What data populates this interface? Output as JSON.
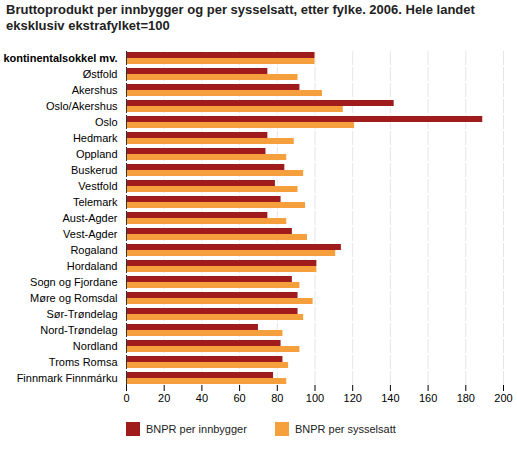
{
  "chart_data": {
    "type": "bar",
    "orientation": "horizontal",
    "title": "Bruttoprodukt per innbygger og per sysselsatt, etter fylke. 2006. Hele landet eksklusiv ekstrafylket=100",
    "categories": [
      "Hele landet, eks. kontinentalsokkel mv.",
      "Østfold",
      "Akershus",
      "Oslo/Akershus",
      "Oslo",
      "Hedmark",
      "Oppland",
      "Buskerud",
      "Vestfold",
      "Telemark",
      "Aust-Agder",
      "Vest-Agder",
      "Rogaland",
      "Hordaland",
      "Sogn og Fjordane",
      "Møre og Romsdal",
      "Sør-Trøndelag",
      "Nord-Trøndelag",
      "Nordland",
      "Troms Romsa",
      "Finnmark Finnmárku"
    ],
    "series": [
      {
        "name": "BNPR per innbygger",
        "color": "#a01c1c",
        "values": [
          100,
          75,
          92,
          142,
          189,
          75,
          74,
          84,
          79,
          82,
          75,
          88,
          114,
          101,
          88,
          91,
          91,
          70,
          82,
          83,
          78
        ]
      },
      {
        "name": "BNPR per sysselsatt",
        "color": "#f5a03c",
        "values": [
          100,
          91,
          104,
          115,
          121,
          89,
          85,
          94,
          91,
          95,
          85,
          96,
          111,
          101,
          92,
          99,
          94,
          83,
          92,
          86,
          85
        ]
      }
    ],
    "xlim": [
      0,
      200
    ],
    "xticks": [
      0,
      20,
      40,
      60,
      80,
      100,
      120,
      140,
      160,
      180,
      200
    ],
    "grid": true,
    "legend": "bottom"
  }
}
